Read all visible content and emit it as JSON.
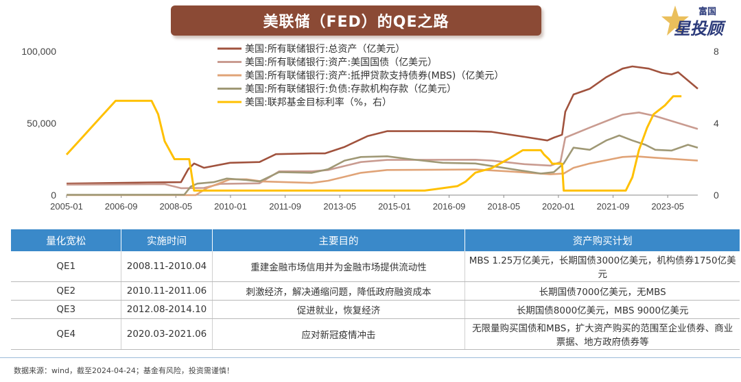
{
  "banner": {
    "title": "美联储（FED）的QE之路"
  },
  "logo": {
    "line1": "富国",
    "line2": "星投顾"
  },
  "chart_data": {
    "type": "line",
    "x_ticks": [
      "2005-01",
      "2006-09",
      "2008-05",
      "2010-01",
      "2011-09",
      "2013-05",
      "2015-01",
      "2016-09",
      "2018-05",
      "2020-01",
      "2021-09",
      "2023-05"
    ],
    "x_range": [
      2005.0,
      2024.3
    ],
    "y_left": {
      "ticks": [
        "0",
        "50,000",
        "100,000"
      ],
      "range": [
        0,
        100000
      ]
    },
    "y_right": {
      "ticks": [
        "0",
        "4",
        "8"
      ],
      "range": [
        0,
        8
      ]
    },
    "legend_position": "top",
    "series": [
      {
        "name": "美国:所有联储银行:总资产（亿美元）",
        "color": "#a0523d",
        "axis": "left",
        "points": [
          [
            2005.0,
            8000
          ],
          [
            2007.5,
            8800
          ],
          [
            2008.5,
            9000
          ],
          [
            2008.72,
            18000
          ],
          [
            2008.9,
            22000
          ],
          [
            2009.2,
            19000
          ],
          [
            2010.0,
            22500
          ],
          [
            2010.9,
            23000
          ],
          [
            2011.4,
            28500
          ],
          [
            2012.5,
            29000
          ],
          [
            2012.9,
            29000
          ],
          [
            2013.5,
            33500
          ],
          [
            2014.2,
            41000
          ],
          [
            2014.8,
            44500
          ],
          [
            2015.5,
            44500
          ],
          [
            2016.5,
            44500
          ],
          [
            2017.5,
            44400
          ],
          [
            2018.0,
            44000
          ],
          [
            2019.0,
            40500
          ],
          [
            2019.7,
            38000
          ],
          [
            2019.9,
            40000
          ],
          [
            2020.15,
            42000
          ],
          [
            2020.25,
            58000
          ],
          [
            2020.5,
            70000
          ],
          [
            2021.0,
            74000
          ],
          [
            2021.5,
            82000
          ],
          [
            2022.0,
            88000
          ],
          [
            2022.3,
            89500
          ],
          [
            2022.8,
            88000
          ],
          [
            2023.2,
            85000
          ],
          [
            2023.5,
            84000
          ],
          [
            2023.7,
            85500
          ],
          [
            2024.3,
            74000
          ]
        ]
      },
      {
        "name": "美国:所有联储银行:资产:美国国债（亿美元）",
        "color": "#c99b90",
        "axis": "left",
        "points": [
          [
            2005.0,
            7300
          ],
          [
            2008.0,
            7600
          ],
          [
            2008.5,
            4800
          ],
          [
            2009.2,
            5000
          ],
          [
            2009.7,
            7800
          ],
          [
            2010.9,
            8200
          ],
          [
            2011.5,
            16500
          ],
          [
            2012.5,
            16500
          ],
          [
            2013.0,
            17500
          ],
          [
            2014.0,
            23000
          ],
          [
            2014.8,
            24500
          ],
          [
            2017.5,
            24600
          ],
          [
            2018.0,
            24000
          ],
          [
            2019.0,
            21500
          ],
          [
            2019.8,
            20500
          ],
          [
            2020.1,
            23000
          ],
          [
            2020.25,
            40000
          ],
          [
            2021.0,
            47000
          ],
          [
            2022.0,
            56000
          ],
          [
            2022.5,
            57500
          ],
          [
            2023.0,
            55000
          ],
          [
            2024.3,
            46000
          ]
        ]
      },
      {
        "name": "美国:所有联储银行:资产:抵押贷款支持债券(MBS)（亿美元）",
        "color": "#e0a377",
        "axis": "left",
        "points": [
          [
            2005.0,
            0
          ],
          [
            2008.95,
            0
          ],
          [
            2009.3,
            5000
          ],
          [
            2010.0,
            11000
          ],
          [
            2010.5,
            11000
          ],
          [
            2011.0,
            9500
          ],
          [
            2012.5,
            8500
          ],
          [
            2013.0,
            10000
          ],
          [
            2014.0,
            15500
          ],
          [
            2014.8,
            17500
          ],
          [
            2017.5,
            17800
          ],
          [
            2018.5,
            16500
          ],
          [
            2019.8,
            14500
          ],
          [
            2020.2,
            15000
          ],
          [
            2020.5,
            19000
          ],
          [
            2021.0,
            22000
          ],
          [
            2022.0,
            26500
          ],
          [
            2022.4,
            27000
          ],
          [
            2023.0,
            26000
          ],
          [
            2024.3,
            24000
          ]
        ]
      },
      {
        "name": "美国:所有联储银行:负债:存款机构存款（亿美元）",
        "color": "#9f9875",
        "axis": "left",
        "points": [
          [
            2005.0,
            200
          ],
          [
            2008.6,
            300
          ],
          [
            2008.8,
            6000
          ],
          [
            2009.0,
            8000
          ],
          [
            2009.5,
            9000
          ],
          [
            2009.9,
            11500
          ],
          [
            2010.5,
            10500
          ],
          [
            2010.9,
            9500
          ],
          [
            2011.5,
            16000
          ],
          [
            2012.5,
            15500
          ],
          [
            2013.0,
            18000
          ],
          [
            2013.5,
            24000
          ],
          [
            2014.0,
            26500
          ],
          [
            2014.8,
            27000
          ],
          [
            2015.5,
            25000
          ],
          [
            2016.5,
            22500
          ],
          [
            2017.5,
            22000
          ],
          [
            2018.5,
            18500
          ],
          [
            2019.5,
            15000
          ],
          [
            2019.9,
            16000
          ],
          [
            2020.2,
            22000
          ],
          [
            2020.5,
            33000
          ],
          [
            2021.0,
            31500
          ],
          [
            2021.5,
            38000
          ],
          [
            2021.9,
            41500
          ],
          [
            2022.3,
            38000
          ],
          [
            2022.7,
            35000
          ],
          [
            2023.0,
            31500
          ],
          [
            2023.5,
            31000
          ],
          [
            2024.0,
            35000
          ],
          [
            2024.3,
            33000
          ]
        ]
      },
      {
        "name": "美国:联邦基金目标利率（%，右）",
        "color": "#ffc000",
        "axis": "right",
        "points": [
          [
            2005.0,
            2.25
          ],
          [
            2005.5,
            3.25
          ],
          [
            2006.0,
            4.25
          ],
          [
            2006.5,
            5.25
          ],
          [
            2007.6,
            5.25
          ],
          [
            2007.8,
            4.5
          ],
          [
            2008.0,
            3.0
          ],
          [
            2008.3,
            2.0
          ],
          [
            2008.75,
            2.0
          ],
          [
            2008.9,
            0.25
          ],
          [
            2015.95,
            0.25
          ],
          [
            2016.95,
            0.5
          ],
          [
            2017.2,
            0.75
          ],
          [
            2017.5,
            1.25
          ],
          [
            2018.0,
            1.5
          ],
          [
            2018.5,
            2.0
          ],
          [
            2018.95,
            2.5
          ],
          [
            2019.5,
            2.5
          ],
          [
            2019.6,
            2.25
          ],
          [
            2019.75,
            2.0
          ],
          [
            2019.85,
            1.75
          ],
          [
            2020.15,
            1.75
          ],
          [
            2020.2,
            0.25
          ],
          [
            2022.1,
            0.25
          ],
          [
            2022.3,
            1.0
          ],
          [
            2022.5,
            2.5
          ],
          [
            2022.75,
            3.75
          ],
          [
            2022.95,
            4.5
          ],
          [
            2023.3,
            5.0
          ],
          [
            2023.55,
            5.5
          ],
          [
            2023.8,
            5.5
          ]
        ]
      }
    ]
  },
  "table": {
    "headers": [
      "量化宽松",
      "实施时间",
      "主要目的",
      "资产购买计划"
    ],
    "rows": [
      {
        "name": "QE1",
        "period": "2008.11-2010.04",
        "purpose": "重建金融市场信用并为金融市场提供流动性",
        "plan": "MBS 1.25万亿美元，长期国债3000亿美元，机构债券1750亿美元"
      },
      {
        "name": "QE2",
        "period": "2010.11-2011.06",
        "purpose": "刺激经济，解决通缩问题，降低政府融资成本",
        "plan": "长期国债7000亿美元，无MBS"
      },
      {
        "name": "QE3",
        "period": "2012.08-2014.10",
        "purpose": "促进就业，恢复经济",
        "plan": "长期国债8000亿美元，MBS 9000亿美元"
      },
      {
        "name": "QE4",
        "period": "2020.03-2021.06",
        "purpose": "应对新冠疫情冲击",
        "plan": "无限量购买国债和MBS，扩大资产购买的范围至企业债券、商业票据、地方政府债券等"
      }
    ]
  },
  "source": "数据来源：wind，截至2024-04-24；基金有风险，投资需谨慎！"
}
